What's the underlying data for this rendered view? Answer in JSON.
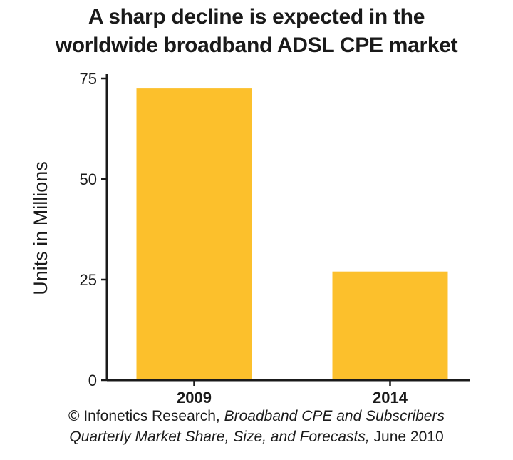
{
  "chart_data": {
    "type": "bar",
    "title_lines": [
      "A sharp decline is expected in the",
      "worldwide broadband ADSL CPE market"
    ],
    "categories": [
      "2009",
      "2014"
    ],
    "values": [
      72.5,
      27
    ],
    "ylabel": "Units in Millions",
    "xlabel": "",
    "ylim": [
      0,
      75
    ],
    "yticks": [
      0,
      25,
      50,
      75
    ],
    "bar_color": "#fcc02c",
    "grid": false,
    "legend": "none"
  },
  "source": {
    "copyright": "© Infonetics Research,",
    "italic_line1": "Broadband CPE and Subscribers",
    "italic_line2": "Quarterly Market Share, Size, and Forecasts,",
    "date": "June 2010"
  }
}
